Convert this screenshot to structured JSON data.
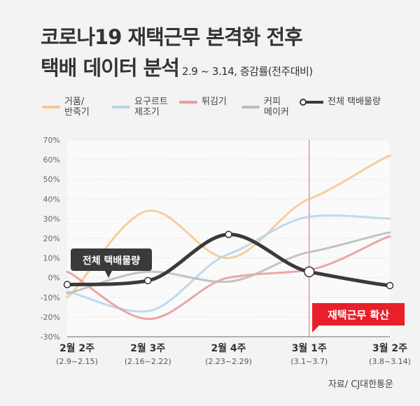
{
  "title_line1": "코로나19 재택근무 본격화 전후",
  "title_line2": "택배 데이터 분석",
  "subtitle": "2.9 ~ 3.14, 증감률(전주대비)",
  "source": "자료/ CJ대한통운",
  "chart_data": {
    "type": "line",
    "categories": [
      "2월 2주",
      "2월 3주",
      "2월 4주",
      "3월 1주",
      "3월 2주"
    ],
    "category_sublabels": [
      "(2.9~2.15)",
      "(2.16~2.22)",
      "(2.23~2.29)",
      "(3.1~3.7)",
      "(3.8~3.14)"
    ],
    "ylim": [
      -30,
      70
    ],
    "yticks": [
      "70%",
      "60%",
      "50%",
      "40%",
      "30%",
      "20%",
      "10%",
      "0%",
      "-10%",
      "-20%",
      "-30%"
    ],
    "grid": true,
    "legend_position": "top",
    "series": [
      {
        "name": "거품/\n반죽기",
        "color": "#f5c98e",
        "values": [
          -10,
          34,
          10,
          40,
          62
        ]
      },
      {
        "name": "요구르트\n제조기",
        "color": "#b7d6ea",
        "values": [
          -7,
          -17,
          12,
          31,
          30
        ]
      },
      {
        "name": "튀김기",
        "color": "#ec9a9c",
        "values": [
          3,
          -21,
          0,
          4,
          21
        ]
      },
      {
        "name": "커피\n메이커",
        "color": "#bdbdbd",
        "values": [
          -8,
          3,
          -2,
          13,
          23
        ]
      },
      {
        "name": "전체 택배물량",
        "color": "#3a3a3a",
        "values": [
          -3.5,
          -1.5,
          22,
          3,
          -4
        ]
      }
    ],
    "annotations": [
      {
        "text": "전체 택배물량",
        "target": "전체 택배물량"
      },
      {
        "text": "재택근무 확산",
        "at": "3월 1주",
        "color": "#e8202a"
      }
    ]
  }
}
